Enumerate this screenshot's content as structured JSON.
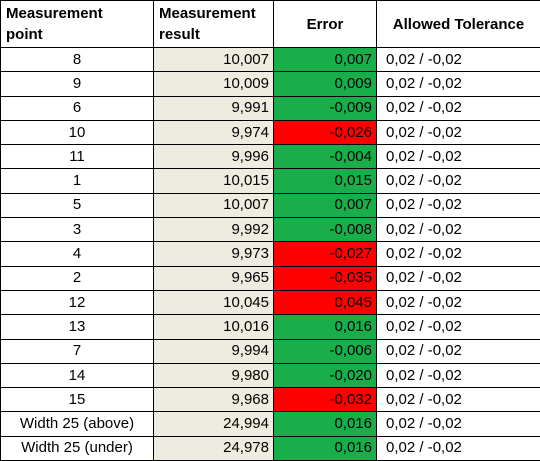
{
  "headers": {
    "point": [
      "Measurement",
      "point"
    ],
    "result": [
      "Measurement",
      "result"
    ],
    "error": "Error",
    "tolerance": "Allowed Tolerance"
  },
  "colors": {
    "pass": "#1aae4a",
    "fail": "#ff0000",
    "result_fill": "#eeece1"
  },
  "rows": [
    {
      "point": "8",
      "result": "10,007",
      "error": "0,007",
      "tolerance": "0,02  /  -0,02",
      "status": "ok"
    },
    {
      "point": "9",
      "result": "10,009",
      "error": "0,009",
      "tolerance": "0,02  /  -0,02",
      "status": "ok"
    },
    {
      "point": "6",
      "result": "9,991",
      "error": "-0,009",
      "tolerance": "0,02  /  -0,02",
      "status": "ok"
    },
    {
      "point": "10",
      "result": "9,974",
      "error": "-0,026",
      "tolerance": "0,02  /  -0,02",
      "status": "bad"
    },
    {
      "point": "11",
      "result": "9,996",
      "error": "-0,004",
      "tolerance": "0,02  /  -0,02",
      "status": "ok"
    },
    {
      "point": "1",
      "result": "10,015",
      "error": "0,015",
      "tolerance": "0,02  /  -0,02",
      "status": "ok"
    },
    {
      "point": "5",
      "result": "10,007",
      "error": "0,007",
      "tolerance": "0,02  /  -0,02",
      "status": "ok"
    },
    {
      "point": "3",
      "result": "9,992",
      "error": "-0,008",
      "tolerance": "0,02  /  -0,02",
      "status": "ok"
    },
    {
      "point": "4",
      "result": "9,973",
      "error": "-0,027",
      "tolerance": "0,02  /  -0,02",
      "status": "bad"
    },
    {
      "point": "2",
      "result": "9,965",
      "error": "-0,035",
      "tolerance": "0,02  /  -0,02",
      "status": "bad"
    },
    {
      "point": "12",
      "result": "10,045",
      "error": "0,045",
      "tolerance": "0,02  /  -0,02",
      "status": "bad"
    },
    {
      "point": "13",
      "result": "10,016",
      "error": "0,016",
      "tolerance": "0,02  /  -0,02",
      "status": "ok"
    },
    {
      "point": "7",
      "result": "9,994",
      "error": "-0,006",
      "tolerance": "0,02  /  -0,02",
      "status": "ok"
    },
    {
      "point": "14",
      "result": "9,980",
      "error": "-0,020",
      "tolerance": "0,02  /  -0,02",
      "status": "ok"
    },
    {
      "point": "15",
      "result": "9,968",
      "error": "-0,032",
      "tolerance": "0,02  /  -0,02",
      "status": "bad"
    },
    {
      "point": "Width 25 (above)",
      "result": "24,994",
      "error": "0,016",
      "tolerance": "0,02  /  -0,02",
      "status": "ok"
    },
    {
      "point": "Width 25 (under)",
      "result": "24,978",
      "error": "0,016",
      "tolerance": "0,02  /  -0,02",
      "status": "ok"
    }
  ]
}
